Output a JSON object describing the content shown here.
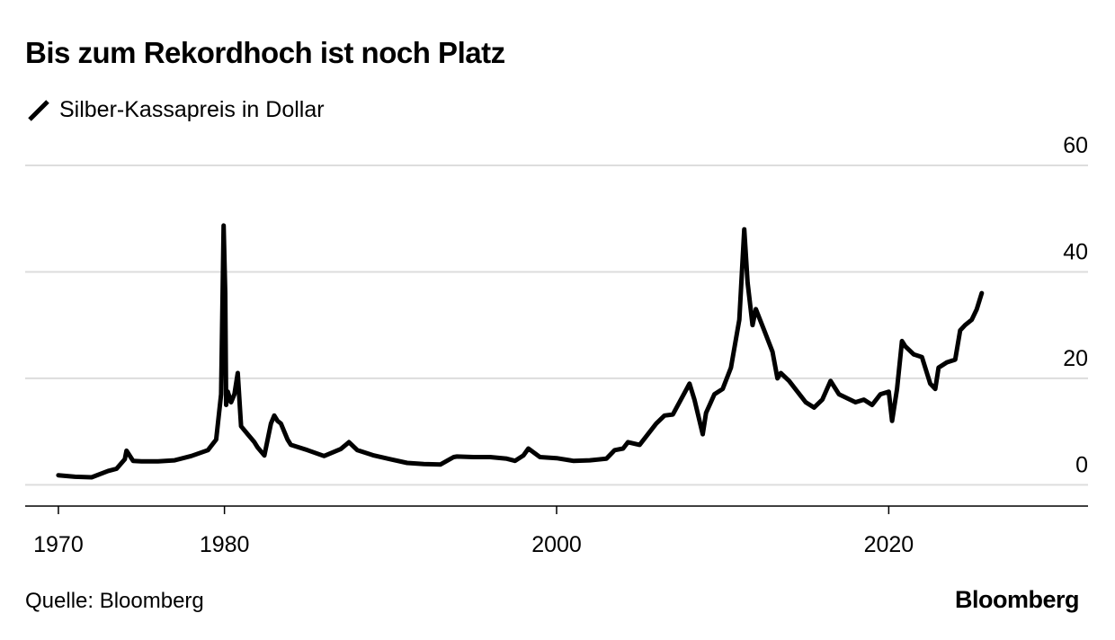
{
  "title": "Bis zum Rekordhoch ist noch Platz",
  "source": "Quelle: Bloomberg",
  "brand": "Bloomberg",
  "chart_data": {
    "type": "line",
    "title": "Bis zum Rekordhoch ist noch Platz",
    "xlabel": "",
    "ylabel": "",
    "xlim": [
      1968,
      2032
    ],
    "ylim": [
      -4,
      60
    ],
    "x_ticks": [
      1970,
      1980,
      2000,
      2020
    ],
    "y_ticks": [
      0,
      20,
      40,
      60
    ],
    "grid": true,
    "legend": "top-left",
    "y_axis_side": "right",
    "color": "#000000",
    "series": [
      {
        "name": "Silber-Kassapreis in Dollar",
        "x": [
          1970,
          1971,
          1972,
          1973,
          1973.5,
          1974,
          1974.1,
          1974.5,
          1975,
          1976,
          1977,
          1978,
          1979,
          1979.5,
          1979.8,
          1979.95,
          1980.05,
          1980.1,
          1980.2,
          1980.4,
          1980.6,
          1980.8,
          1981,
          1981.4,
          1981.8,
          1982,
          1982.4,
          1982.8,
          1983,
          1983.2,
          1983.4,
          1983.8,
          1984,
          1985,
          1986,
          1987,
          1987.5,
          1988,
          1989,
          1990,
          1991,
          1992,
          1993,
          1993.8,
          1994,
          1995,
          1996,
          1997,
          1997.5,
          1998,
          1998.3,
          1999,
          2000,
          2001,
          2002,
          2003,
          2003.5,
          2004,
          2004.3,
          2005,
          2006,
          2006.5,
          2007,
          2008,
          2008.3,
          2008.8,
          2009,
          2009.5,
          2010,
          2010.5,
          2011,
          2011.3,
          2011.5,
          2011.8,
          2012,
          2012.5,
          2013,
          2013.3,
          2013.5,
          2014,
          2015,
          2015.5,
          2016,
          2016.5,
          2017,
          2018,
          2018.5,
          2019,
          2019.5,
          2020,
          2020.2,
          2020.5,
          2020.8,
          2021,
          2021.5,
          2022,
          2022.5,
          2022.8,
          2023,
          2023.5,
          2024,
          2024.3,
          2024.6,
          2025,
          2025.3,
          2025.6
        ],
        "y": [
          1.8,
          1.5,
          1.4,
          2.6,
          3.0,
          4.8,
          6.4,
          4.5,
          4.4,
          4.4,
          4.6,
          5.4,
          6.5,
          8.5,
          17.0,
          48.7,
          36.0,
          15.0,
          17.5,
          15.5,
          17.0,
          21.0,
          11.0,
          9.5,
          8.0,
          7.0,
          5.5,
          11.5,
          13.0,
          12.0,
          11.5,
          8.5,
          7.5,
          6.5,
          5.4,
          6.7,
          8.0,
          6.5,
          5.5,
          4.8,
          4.1,
          3.9,
          3.8,
          5.2,
          5.3,
          5.2,
          5.2,
          4.9,
          4.5,
          5.5,
          6.8,
          5.2,
          5.0,
          4.5,
          4.6,
          4.9,
          6.5,
          6.8,
          8.0,
          7.5,
          11.5,
          13.0,
          13.2,
          19.0,
          16.0,
          9.5,
          13.5,
          17.0,
          18.0,
          22.0,
          31.0,
          48.0,
          38.0,
          30.0,
          33.0,
          29.0,
          25.0,
          20.0,
          21.0,
          19.5,
          15.5,
          14.5,
          16.0,
          19.5,
          17.0,
          15.5,
          16.0,
          15.0,
          17.0,
          17.5,
          12.0,
          18.0,
          27.0,
          26.0,
          24.5,
          24.0,
          19.0,
          18.0,
          22.0,
          23.0,
          23.5,
          29.0,
          30.0,
          31.0,
          33.0,
          36.0
        ]
      }
    ]
  }
}
